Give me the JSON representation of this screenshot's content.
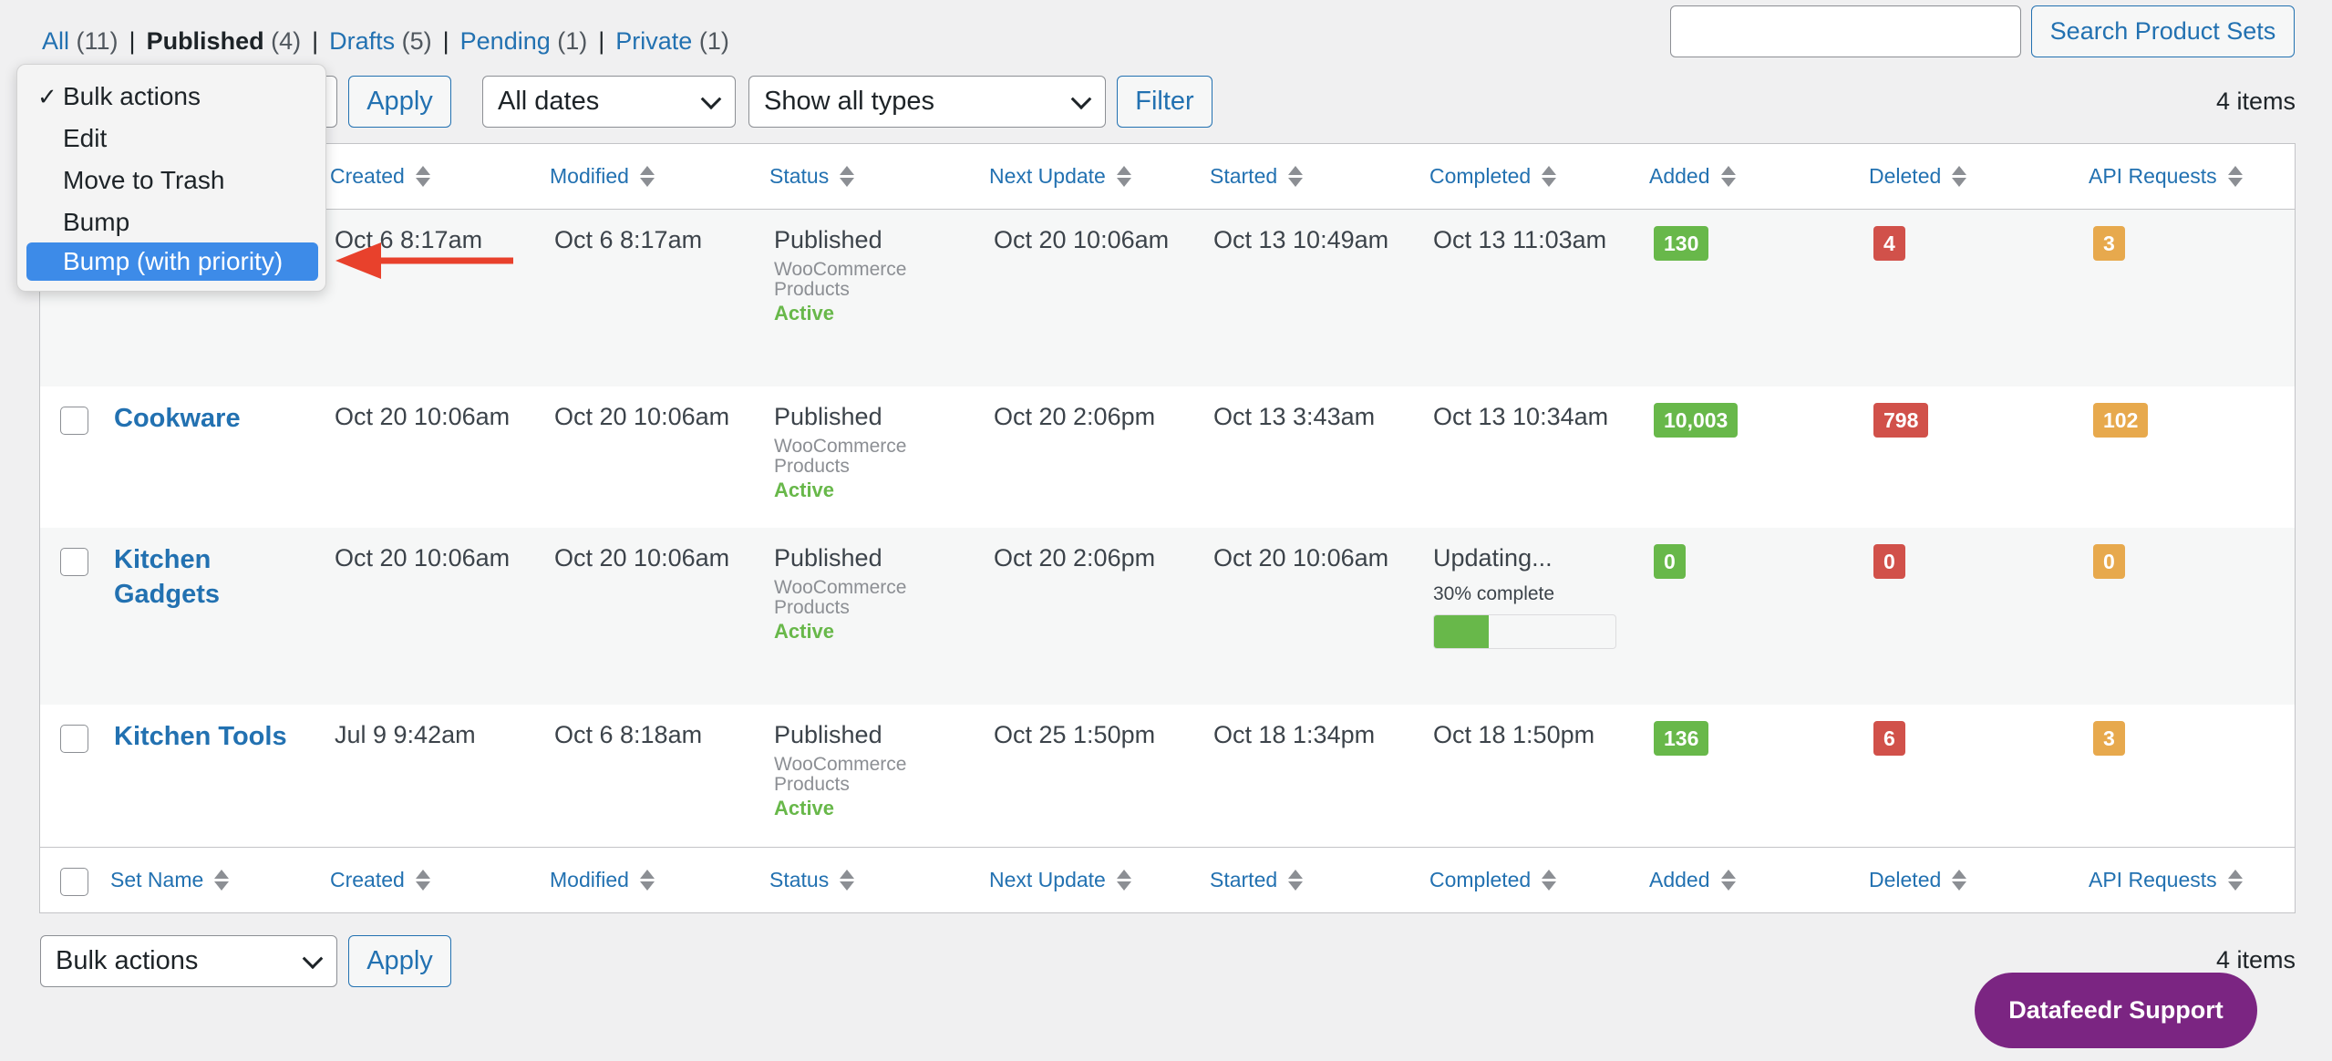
{
  "status_filters": [
    {
      "label": "All",
      "count": "(11)"
    },
    {
      "label": "Published",
      "count": "(4)"
    },
    {
      "label": "Drafts",
      "count": "(5)"
    },
    {
      "label": "Pending",
      "count": "(1)"
    },
    {
      "label": "Private",
      "count": "(1)"
    }
  ],
  "search": {
    "placeholder": "",
    "button": "Search Product Sets"
  },
  "toolbar": {
    "bulk_selected": "Bulk actions",
    "apply": "Apply",
    "dates": "All dates",
    "types": "Show all types",
    "filter": "Filter",
    "items_count": "4 items"
  },
  "bulk_menu": {
    "items": [
      "Bulk actions",
      "Edit",
      "Move to Trash",
      "Bump",
      "Bump (with priority)"
    ],
    "checked": "Bulk actions",
    "highlighted": "Bump (with priority)"
  },
  "columns": [
    "Set Name",
    "Created",
    "Modified",
    "Status",
    "Next Update",
    "Started",
    "Completed",
    "Added",
    "Deleted",
    "API Requests"
  ],
  "rows": [
    {
      "name": "",
      "created": "Oct 6 8:17am",
      "modified": "Oct 6 8:17am",
      "status": "Published",
      "type_line1": "WooCommerce",
      "type_line2": "Products",
      "state": "Active",
      "next_update": "Oct 20 10:06am",
      "started": "Oct 13 10:49am",
      "completed": "Oct 13 11:03am",
      "added": "130",
      "deleted": "4",
      "api": "3"
    },
    {
      "name": "Cookware",
      "created": "Oct 20 10:06am",
      "modified": "Oct 20 10:06am",
      "status": "Published",
      "type_line1": "WooCommerce",
      "type_line2": "Products",
      "state": "Active",
      "next_update": "Oct 20 2:06pm",
      "started": "Oct 13 3:43am",
      "completed": "Oct 13 10:34am",
      "added": "10,003",
      "deleted": "798",
      "api": "102"
    },
    {
      "name_line1": "Kitchen",
      "name_line2": "Gadgets",
      "created": "Oct 20 10:06am",
      "modified": "Oct 20 10:06am",
      "status": "Published",
      "type_line1": "WooCommerce",
      "type_line2": "Products",
      "state": "Active",
      "next_update": "Oct 20 2:06pm",
      "started": "Oct 20 10:06am",
      "completed": "Updating...",
      "progress_text": "30% complete",
      "progress": 0.3,
      "added": "0",
      "deleted": "0",
      "api": "0"
    },
    {
      "name": "Kitchen Tools",
      "created": "Jul 9 9:42am",
      "modified": "Oct 6 8:18am",
      "status": "Published",
      "type_line1": "WooCommerce",
      "type_line2": "Products",
      "state": "Active",
      "next_update": "Oct 25 1:50pm",
      "started": "Oct 18 1:34pm",
      "completed": "Oct 18 1:50pm",
      "added": "136",
      "deleted": "6",
      "api": "3"
    }
  ],
  "support_button": "Datafeedr Support",
  "colors": {
    "link": "#2271b1",
    "badge_added": "#68b84a",
    "badge_deleted": "#d1514a",
    "badge_api": "#e7a94d",
    "support": "#7b2582",
    "menu_highlight": "#3d8be8",
    "annotation_arrow": "#e8412c"
  }
}
